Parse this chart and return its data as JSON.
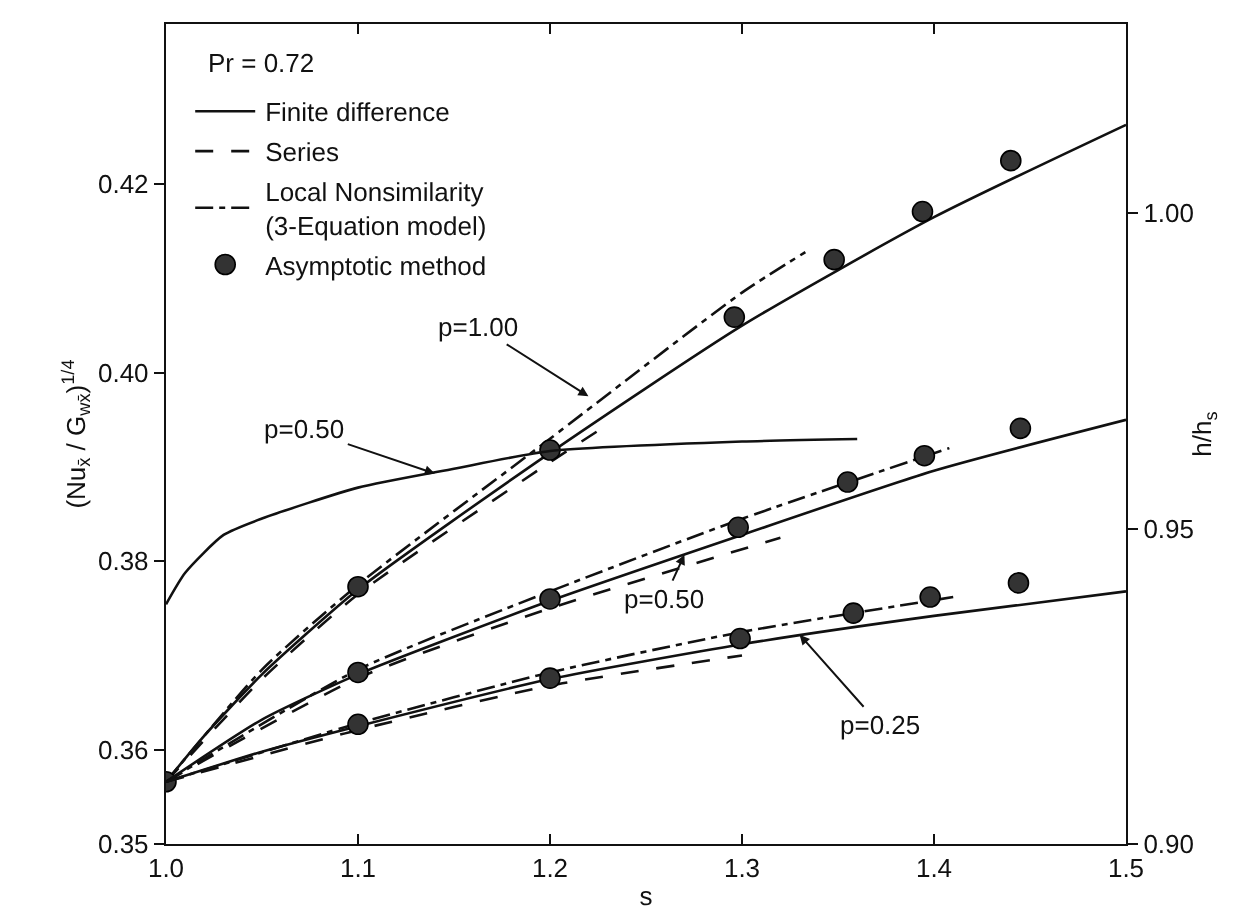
{
  "chart_data": {
    "type": "line",
    "xlabel": "s",
    "ylabel": "(Nu$_{x̄}$ / G$_{wx̄}$)$^{1/4}$",
    "y2label": "h/h$_{s}$",
    "xlim": [
      1.0,
      1.5
    ],
    "xticks": [
      {
        "value": 1.0,
        "label": "1.0"
      },
      1.1,
      1.2,
      1.3,
      1.4,
      1.5
    ],
    "ylim": [
      0.35,
      0.437
    ],
    "yticks": [
      0.35,
      0.36,
      {
        "value": 0.38,
        "label": "0.38"
      },
      {
        "value": 0.4,
        "label": "0.40"
      },
      0.42
    ],
    "y2lim": [
      0.9,
      1.03
    ],
    "y2ticks": [
      {
        "value": 0.9,
        "label": "0.90"
      },
      0.95,
      {
        "value": 1.0,
        "label": "1.00"
      }
    ],
    "grid": false,
    "legend": "top left",
    "series": [
      {
        "name": "Finite difference",
        "color": "#111111",
        "line_style": "solid",
        "marker": "none",
        "x": [
          1.0,
          1.02,
          1.05,
          1.1,
          1.2,
          1.3,
          1.4,
          1.5
        ],
        "values": [
          0.3566,
          0.3615,
          0.368,
          0.377,
          0.3915,
          0.405,
          0.4165,
          0.4263
        ]
      },
      {
        "name": "Series",
        "color": "#111111",
        "line_style": "dashed",
        "marker": "none",
        "x": [
          1.0,
          1.05,
          1.1,
          1.2,
          1.23
        ],
        "values": [
          0.3566,
          0.3675,
          0.3765,
          0.3905,
          0.3945
        ]
      },
      {
        "name": "Local Nonsimilarity\n(3-Equation model)",
        "color": "#111111",
        "line_style": "dashdot",
        "marker": "none",
        "x": [
          1.0,
          1.05,
          1.1,
          1.2,
          1.3,
          1.333
        ],
        "values": [
          0.3566,
          0.3685,
          0.3775,
          0.393,
          0.4085,
          0.4128
        ]
      },
      {
        "name": "Asymptotic method",
        "type": "scatter",
        "color": "#333333",
        "marker": "circle",
        "x": [
          1.0,
          1.1,
          1.2,
          1.296,
          1.348,
          1.394,
          1.44
        ],
        "values": [
          0.3566,
          0.3773,
          0.3918,
          0.4059,
          0.412,
          0.4171,
          0.4225
        ]
      },
      {
        "color": "#111111",
        "line_style": "solid",
        "marker": "none",
        "axis": "y2",
        "x": [
          1.0,
          1.01,
          1.03,
          1.05,
          1.1,
          1.15,
          1.2,
          1.3,
          1.36
        ],
        "values": [
          0.938,
          0.943,
          0.949,
          0.9516,
          0.9565,
          0.9595,
          0.9623,
          0.9638,
          0.9642
        ]
      },
      {
        "color": "#111111",
        "line_style": "solid",
        "marker": "none",
        "x": [
          1.0,
          1.05,
          1.1,
          1.2,
          1.3,
          1.4,
          1.5
        ],
        "values": [
          0.3566,
          0.3632,
          0.368,
          0.3758,
          0.3828,
          0.3896,
          0.395
        ]
      },
      {
        "color": "#111111",
        "line_style": "dashed",
        "marker": "none",
        "x": [
          1.0,
          1.1,
          1.2,
          1.32
        ],
        "values": [
          0.3566,
          0.3676,
          0.375,
          0.3825
        ]
      },
      {
        "color": "#111111",
        "line_style": "dashdot",
        "marker": "none",
        "x": [
          1.0,
          1.1,
          1.2,
          1.3,
          1.408
        ],
        "values": [
          0.3566,
          0.3685,
          0.3768,
          0.3845,
          0.392
        ]
      },
      {
        "type": "scatter",
        "color": "#333333",
        "marker": "circle",
        "x": [
          1.1,
          1.2,
          1.298,
          1.355,
          1.395,
          1.445
        ],
        "values": [
          0.3682,
          0.376,
          0.3836,
          0.3884,
          0.3912,
          0.3941
        ]
      },
      {
        "color": "#111111",
        "line_style": "solid",
        "marker": "none",
        "x": [
          1.0,
          1.05,
          1.1,
          1.2,
          1.3,
          1.4,
          1.5
        ],
        "values": [
          0.3566,
          0.3598,
          0.3625,
          0.3675,
          0.3712,
          0.3742,
          0.3768
        ]
      },
      {
        "color": "#111111",
        "line_style": "dashed",
        "marker": "none",
        "x": [
          1.0,
          1.1,
          1.2,
          1.3
        ],
        "values": [
          0.3566,
          0.3621,
          0.3668,
          0.37
        ]
      },
      {
        "color": "#111111",
        "line_style": "dashdot",
        "marker": "none",
        "x": [
          1.0,
          1.1,
          1.2,
          1.3,
          1.41
        ],
        "values": [
          0.3566,
          0.3628,
          0.3682,
          0.3725,
          0.3762
        ]
      },
      {
        "type": "scatter",
        "color": "#333333",
        "marker": "circle",
        "x": [
          1.1,
          1.2,
          1.299,
          1.358,
          1.398,
          1.444
        ],
        "values": [
          0.3627,
          0.3676,
          0.3718,
          0.3745,
          0.3762,
          0.3777
        ]
      }
    ],
    "annotations": [
      "Pr = 0.72",
      {
        "text": "p=1.00",
        "x": 1.22,
        "y": 0.3975
      },
      {
        "text": "p=0.50",
        "x": 1.14,
        "y": 0.3893
      },
      {
        "text": "p=0.50",
        "x": 1.27,
        "y": 0.3807
      },
      {
        "text": "p=0.25",
        "x": 1.33,
        "y": 0.3722
      }
    ]
  }
}
